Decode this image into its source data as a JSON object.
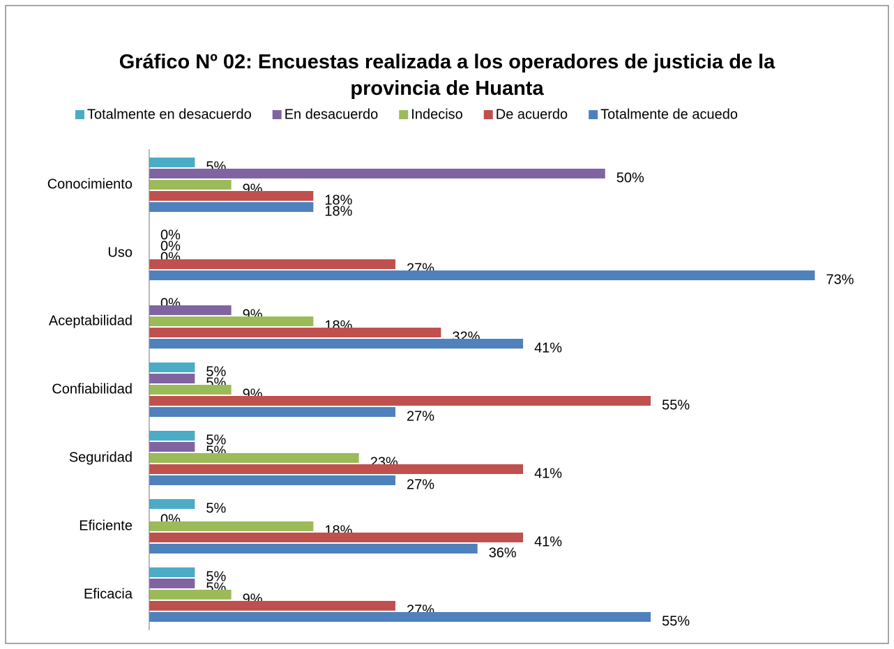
{
  "chart_data": {
    "type": "bar",
    "orientation": "horizontal",
    "title": "Gráfico Nº 02: Encuestas realizada a los operadores de justicia de la provincia de Huanta",
    "categories": [
      "Conocimiento",
      "Uso",
      "Aceptabilidad",
      "Confiabilidad",
      "Seguridad",
      "Eficiente",
      "Eficacia"
    ],
    "series": [
      {
        "name": "Totalmente en desacuerdo",
        "color": "#4bacc6",
        "values": [
          5,
          0,
          0,
          5,
          5,
          5,
          5
        ],
        "value_labels": [
          "5%",
          "0%",
          "0%",
          "5%",
          "5%",
          "5%",
          "5%"
        ]
      },
      {
        "name": "En desacuerdo",
        "color": "#8064a2",
        "values": [
          50,
          0,
          9,
          5,
          5,
          0,
          5
        ],
        "value_labels": [
          "50%",
          "0%",
          "9%",
          "5%",
          "5%",
          "0%",
          "5%"
        ]
      },
      {
        "name": "Indeciso",
        "color": "#9bbb59",
        "values": [
          9,
          0,
          18,
          9,
          23,
          18,
          9
        ],
        "value_labels": [
          "9%",
          "0%",
          "18%",
          "9%",
          "23%",
          "18%",
          "9%"
        ]
      },
      {
        "name": "De acuerdo",
        "color": "#c0504d",
        "values": [
          18,
          27,
          32,
          55,
          41,
          41,
          27
        ],
        "value_labels": [
          "18%",
          "27%",
          "32%",
          "55%",
          "41%",
          "41%",
          "27%"
        ]
      },
      {
        "name": "Totalmente de acuedo",
        "color": "#4f81bd",
        "values": [
          18,
          73,
          41,
          27,
          27,
          36,
          55
        ],
        "value_labels": [
          "18%",
          "73%",
          "41%",
          "27%",
          "27%",
          "36%",
          "55%"
        ]
      }
    ],
    "xlim": [
      0,
      80
    ],
    "legend": "top"
  }
}
